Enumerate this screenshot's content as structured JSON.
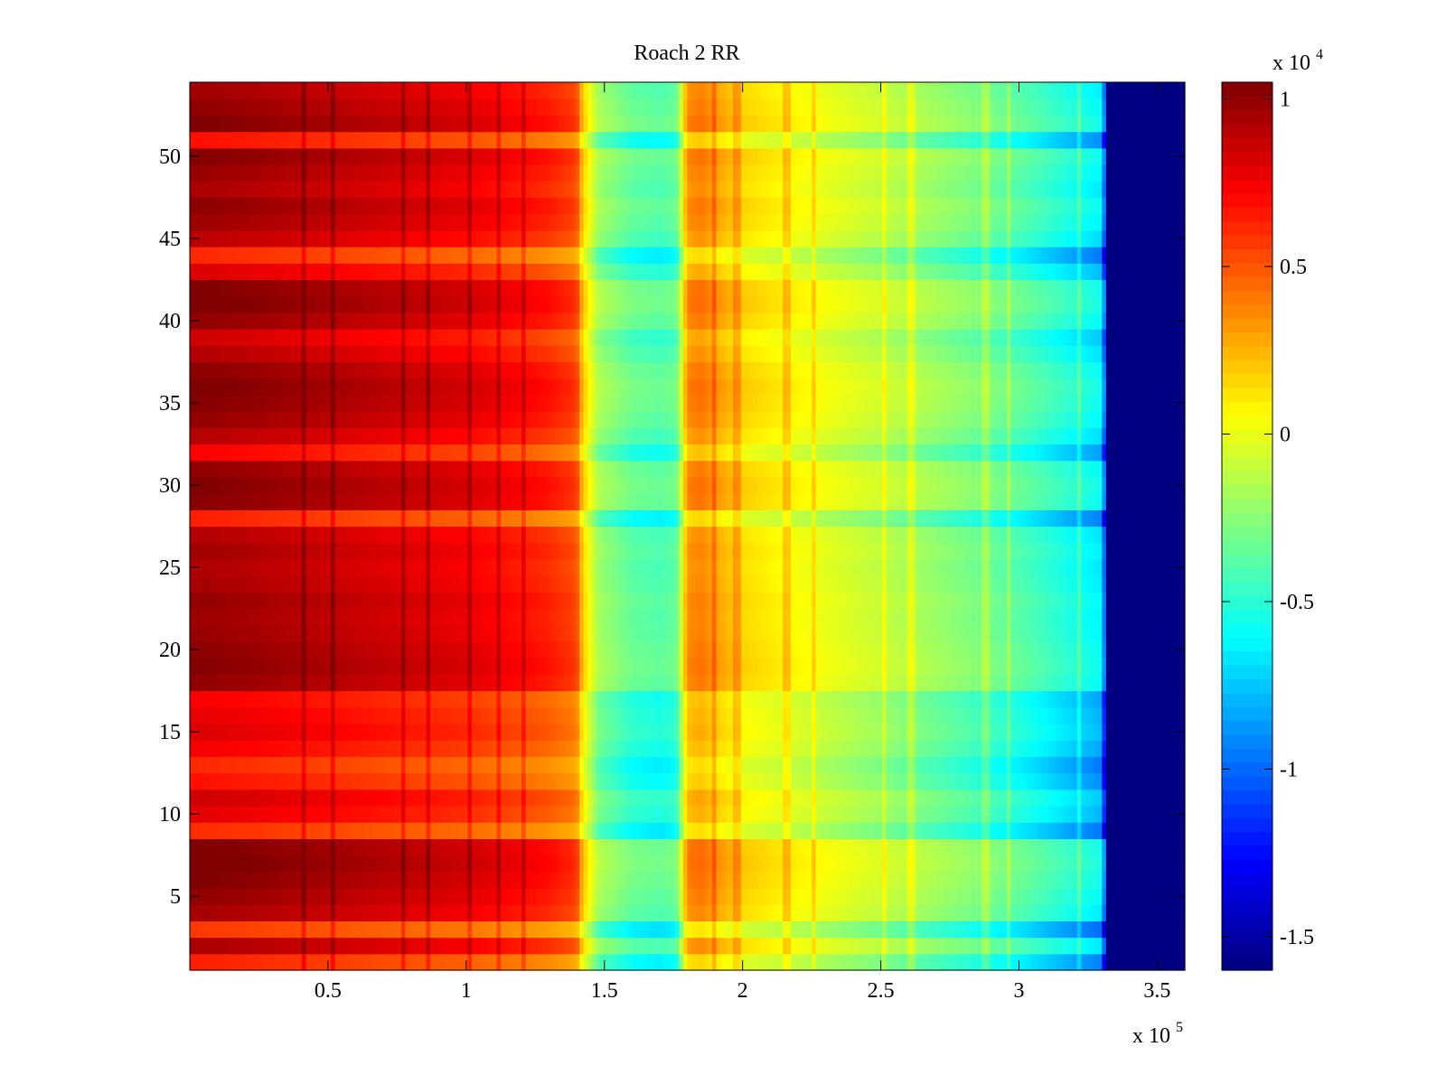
{
  "chart_data": {
    "type": "heatmap",
    "title": "Roach 2 RR",
    "xlabel": "",
    "ylabel": "",
    "x_range": [
      0,
      360000
    ],
    "y_range": [
      0.5,
      54.5
    ],
    "x_ticks": [
      50000,
      100000,
      150000,
      200000,
      250000,
      300000,
      350000
    ],
    "x_tick_labels": [
      "0.5",
      "1",
      "1.5",
      "2",
      "2.5",
      "3",
      "3.5"
    ],
    "x_exponent_label": "x 10",
    "x_exponent_power": "5",
    "y_ticks": [
      5,
      10,
      15,
      20,
      25,
      30,
      35,
      40,
      45,
      50
    ],
    "y_tick_labels": [
      "5",
      "10",
      "15",
      "20",
      "25",
      "30",
      "35",
      "40",
      "45",
      "50"
    ],
    "rows": 54,
    "colormap": "jet",
    "colorbar": {
      "range": [
        -16000,
        10500
      ],
      "ticks": [
        -15000,
        -10000,
        -5000,
        0,
        5000,
        10000
      ],
      "tick_labels": [
        "-1.5",
        "-1",
        "-0.5",
        "0",
        "0.5",
        "1"
      ],
      "exponent_label": "x 10",
      "exponent_power": "4"
    },
    "column_profile": [
      {
        "x": 0,
        "value": 8800
      },
      {
        "x": 20000,
        "value": 8500
      },
      {
        "x": 50000,
        "value": 7900
      },
      {
        "x": 100000,
        "value": 6800
      },
      {
        "x": 130000,
        "value": 5500
      },
      {
        "x": 140000,
        "value": 4600
      },
      {
        "x": 142000,
        "value": 1500
      },
      {
        "x": 148000,
        "value": -2500
      },
      {
        "x": 160000,
        "value": -4200
      },
      {
        "x": 170000,
        "value": -4600
      },
      {
        "x": 176000,
        "value": -4200
      },
      {
        "x": 178000,
        "value": -800
      },
      {
        "x": 180000,
        "value": 2800
      },
      {
        "x": 185000,
        "value": 3200
      },
      {
        "x": 200000,
        "value": 1000
      },
      {
        "x": 250000,
        "value": -1500
      },
      {
        "x": 300000,
        "value": -4500
      },
      {
        "x": 330000,
        "value": -7200
      },
      {
        "x": 332000,
        "value": -16000
      },
      {
        "x": 360000,
        "value": -16000
      }
    ],
    "row_offsets": [
      {
        "row": 1,
        "offset": -2200
      },
      {
        "row": 2,
        "offset": 600
      },
      {
        "row": 3,
        "offset": -2800
      },
      {
        "row": 4,
        "offset": 700
      },
      {
        "row": 5,
        "offset": 1200
      },
      {
        "row": 6,
        "offset": 1600
      },
      {
        "row": 7,
        "offset": 1900
      },
      {
        "row": 8,
        "offset": 1700
      },
      {
        "row": 9,
        "offset": -2500
      },
      {
        "row": 10,
        "offset": -800
      },
      {
        "row": 11,
        "offset": -300
      },
      {
        "row": 12,
        "offset": -1800
      },
      {
        "row": 13,
        "offset": -2400
      },
      {
        "row": 14,
        "offset": -1200
      },
      {
        "row": 15,
        "offset": -600
      },
      {
        "row": 16,
        "offset": -900
      },
      {
        "row": 17,
        "offset": -1300
      },
      {
        "row": 18,
        "offset": 1200
      },
      {
        "row": 19,
        "offset": 1500
      },
      {
        "row": 20,
        "offset": 1300
      },
      {
        "row": 21,
        "offset": 1000
      },
      {
        "row": 22,
        "offset": 900
      },
      {
        "row": 23,
        "offset": 1100
      },
      {
        "row": 24,
        "offset": 700
      },
      {
        "row": 25,
        "offset": 500
      },
      {
        "row": 26,
        "offset": 800
      },
      {
        "row": 27,
        "offset": 400
      },
      {
        "row": 28,
        "offset": -2200
      },
      {
        "row": 29,
        "offset": 1400
      },
      {
        "row": 30,
        "offset": 1600
      },
      {
        "row": 31,
        "offset": 1200
      },
      {
        "row": 32,
        "offset": -1400
      },
      {
        "row": 33,
        "offset": 300
      },
      {
        "row": 34,
        "offset": 1100
      },
      {
        "row": 35,
        "offset": 1500
      },
      {
        "row": 36,
        "offset": 1700
      },
      {
        "row": 37,
        "offset": 1300
      },
      {
        "row": 38,
        "offset": 400
      },
      {
        "row": 39,
        "offset": -300
      },
      {
        "row": 40,
        "offset": 1200
      },
      {
        "row": 41,
        "offset": 1800
      },
      {
        "row": 42,
        "offset": 1600
      },
      {
        "row": 43,
        "offset": -600
      },
      {
        "row": 44,
        "offset": -2400
      },
      {
        "row": 45,
        "offset": 200
      },
      {
        "row": 46,
        "offset": 900
      },
      {
        "row": 47,
        "offset": 1300
      },
      {
        "row": 48,
        "offset": 600
      },
      {
        "row": 49,
        "offset": 1000
      },
      {
        "row": 50,
        "offset": 1500
      },
      {
        "row": 51,
        "offset": -1800
      },
      {
        "row": 52,
        "offset": 1600
      },
      {
        "row": 53,
        "offset": 1200
      },
      {
        "row": 54,
        "offset": 800
      }
    ],
    "vertical_streaks_x": [
      41000,
      52000,
      77000,
      86000,
      101000,
      112000,
      121000,
      190000,
      198000,
      216000,
      226000,
      251000,
      261000,
      288000,
      296000,
      322000
    ],
    "colorbar_position": "right",
    "grid": false
  }
}
